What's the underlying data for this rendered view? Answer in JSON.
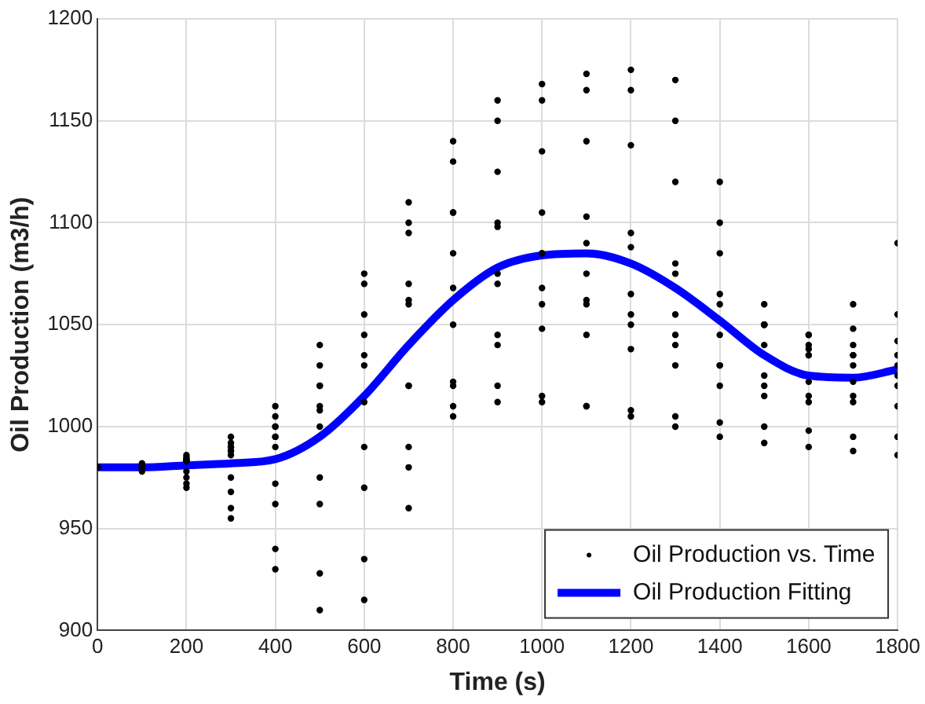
{
  "chart_data": {
    "type": "scatter",
    "xlabel": "Time (s)",
    "ylabel": "Oil Production (m3/h)",
    "xlim": [
      0,
      1800
    ],
    "xticks": [
      0,
      200,
      400,
      600,
      800,
      1000,
      1200,
      1400,
      1600,
      1800
    ],
    "ylim": [
      900,
      1200
    ],
    "yticks": [
      900,
      950,
      1000,
      1050,
      1100,
      1150,
      1200
    ],
    "grid": true,
    "legend": "bottom right",
    "series": [
      {
        "name": "Oil Production vs. Time",
        "type": "scatter",
        "marker": "circle",
        "color": "#000000",
        "x": [
          0,
          100,
          200,
          300,
          400,
          500,
          600,
          700,
          800,
          900,
          1000,
          1100,
          1200,
          1300,
          1400,
          1500,
          1600,
          1700,
          1800,
          0,
          100,
          200,
          300,
          400,
          500,
          600,
          700,
          800,
          900,
          1000,
          1100,
          1200,
          1300,
          1400,
          1500,
          1600,
          1700,
          1800,
          0,
          100,
          200,
          300,
          400,
          500,
          600,
          700,
          800,
          900,
          1000,
          1100,
          1200,
          1300,
          1400,
          1500,
          1600,
          1700,
          1800,
          0,
          100,
          200,
          300,
          400,
          500,
          600,
          700,
          800,
          900,
          1000,
          1100,
          1200,
          1300,
          1400,
          1500,
          1600,
          1700,
          1800,
          0,
          100,
          200,
          300,
          400,
          500,
          600,
          700,
          800,
          900,
          1000,
          1100,
          1200,
          1300,
          1400,
          1500,
          1600,
          1700,
          1800,
          0,
          100,
          200,
          300,
          400,
          500,
          600,
          700,
          800,
          900,
          1000,
          1100,
          1200,
          1300,
          1400,
          1500,
          1600,
          1700,
          1800,
          0,
          100,
          200,
          300,
          400,
          500,
          600,
          700,
          800,
          900,
          1000,
          1100,
          1200,
          1300,
          1400,
          1500,
          1600,
          1700,
          1800,
          0,
          100,
          200,
          300,
          400,
          500,
          600,
          700,
          800,
          900,
          1000,
          1100,
          1200,
          1300,
          1400,
          1500,
          1600,
          1700,
          1800,
          0,
          100,
          200,
          300,
          400,
          500,
          600,
          700,
          800,
          900,
          1000,
          1100,
          1200,
          1300,
          1400,
          1500,
          1600,
          1700,
          1800,
          0,
          100,
          200,
          300,
          400,
          500,
          600,
          700,
          800,
          900,
          1000,
          1100,
          1200,
          1300,
          1400,
          1500,
          1600,
          1700,
          1800,
          0,
          100,
          200,
          300,
          400,
          500,
          600,
          700,
          800,
          900,
          1000,
          1100,
          1200,
          1300,
          1400,
          1500,
          1600,
          1700,
          1800
        ],
        "values": [
          980,
          981,
          985,
          992,
          1005,
          1030,
          1070,
          1110,
          1140,
          1160,
          1168,
          1173,
          1175,
          1170,
          1120,
          1060,
          1040,
          1040,
          1042,
          980,
          981,
          984,
          990,
          1000,
          1020,
          1055,
          1095,
          1130,
          1150,
          1160,
          1165,
          1165,
          1150,
          1100,
          1050,
          1035,
          1035,
          1035,
          980,
          981,
          983,
          988,
          995,
          1010,
          1035,
          1070,
          1105,
          1125,
          1135,
          1140,
          1138,
          1120,
          1085,
          1050,
          1035,
          1030,
          1030,
          980,
          981,
          983,
          988,
          995,
          1008,
          1030,
          1060,
          1085,
          1100,
          1105,
          1103,
          1095,
          1080,
          1065,
          1050,
          1045,
          1060,
          1090,
          980,
          982,
          986,
          995,
          1010,
          1040,
          1075,
          1100,
          1105,
          1098,
          1085,
          1075,
          1065,
          1055,
          1045,
          1040,
          1038,
          1035,
          1035,
          980,
          978,
          970,
          955,
          930,
          910,
          915,
          960,
          1010,
          1045,
          1060,
          1062,
          1055,
          1045,
          1030,
          1020,
          1015,
          1012,
          1010,
          980,
          979,
          972,
          960,
          940,
          928,
          935,
          980,
          1020,
          1040,
          1048,
          1045,
          1038,
          1030,
          1020,
          1015,
          1012,
          1015,
          1020,
          980,
          979,
          975,
          968,
          962,
          962,
          970,
          990,
          1005,
          1012,
          1012,
          1010,
          1008,
          1005,
          1002,
          1000,
          998,
          995,
          995,
          980,
          981,
          983,
          986,
          990,
          1000,
          1012,
          1020,
          1022,
          1020,
          1015,
          1010,
          1005,
          1000,
          995,
          992,
          990,
          988,
          986,
          980,
          981,
          984,
          990,
          1000,
          1020,
          1045,
          1062,
          1068,
          1070,
          1068,
          1060,
          1050,
          1040,
          1030,
          1025,
          1022,
          1022,
          1025,
          980,
          980,
          978,
          975,
          972,
          975,
          990,
          1020,
          1050,
          1075,
          1085,
          1090,
          1088,
          1075,
          1060,
          1050,
          1045,
          1048,
          1055
        ]
      },
      {
        "name": "Oil Production Fitting",
        "type": "line",
        "marker": "none",
        "line_style": "solid",
        "color": "#0000ff",
        "x": [
          0,
          100,
          200,
          300,
          400,
          500,
          600,
          700,
          800,
          900,
          1000,
          1100,
          1200,
          1300,
          1400,
          1500,
          1600,
          1700,
          1800
        ],
        "values": [
          980,
          980,
          981,
          982,
          984,
          995,
          1015,
          1040,
          1062,
          1078,
          1084,
          1085,
          1080,
          1068,
          1052,
          1035,
          1025,
          1024,
          1028
        ]
      }
    ]
  }
}
